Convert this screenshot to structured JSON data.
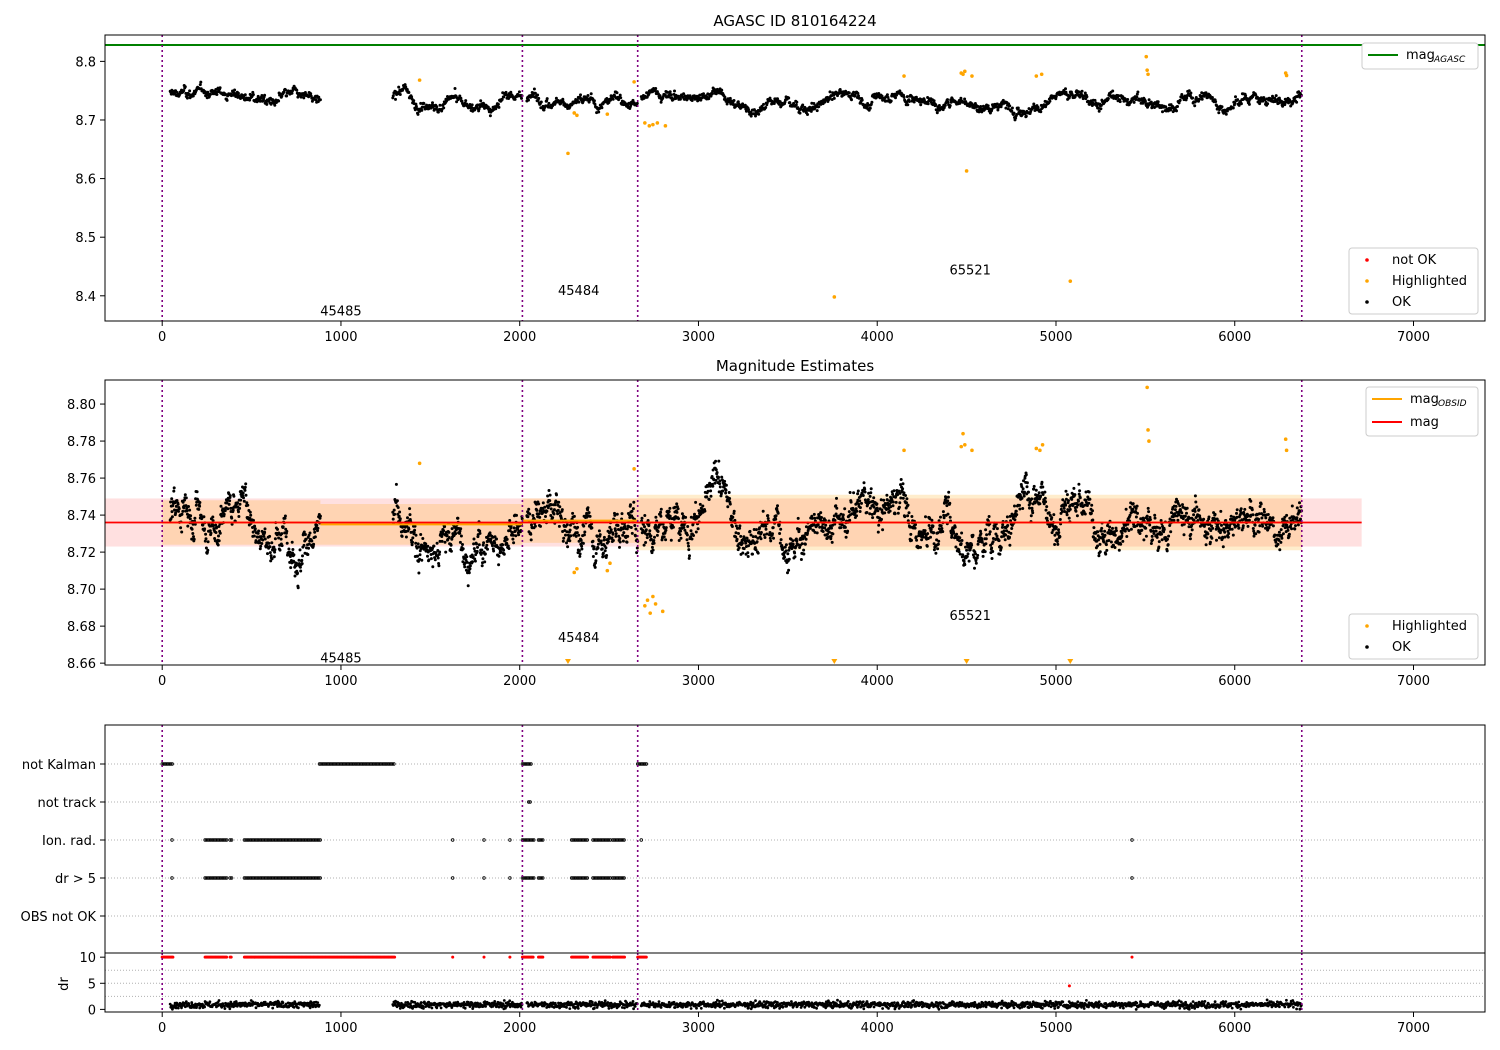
{
  "chart_data": [
    {
      "type": "scatter",
      "title": "AGASC ID 810164224",
      "xlim": [
        -320,
        7400
      ],
      "ylim": [
        8.357,
        8.845
      ],
      "x_ticks": [
        0,
        1000,
        2000,
        3000,
        4000,
        5000,
        6000,
        7000
      ],
      "y_ticks": [
        8.4,
        8.5,
        8.6,
        8.7,
        8.8
      ],
      "reference_line": {
        "name": "mag",
        "subscript": "AGASC",
        "value": 8.828,
        "color": "#008000"
      },
      "obs_boundaries": [
        0,
        2015,
        2660,
        6375
      ],
      "obs_labels": [
        {
          "text": "45485",
          "x": 1000,
          "y": 8.375
        },
        {
          "text": "45484",
          "x": 2330,
          "y": 8.41
        },
        {
          "text": "65521",
          "x": 4520,
          "y": 8.445
        }
      ],
      "segments": [
        {
          "x0": 45,
          "x1": 885,
          "level": 8.738
        },
        {
          "x0": 1290,
          "x1": 2015,
          "level": 8.731
        },
        {
          "x0": 2040,
          "x1": 2660,
          "level": 8.738
        },
        {
          "x0": 2680,
          "x1": 6375,
          "level": 8.736
        }
      ],
      "series": [
        {
          "name": "not OK",
          "color": "#ff0000",
          "points": []
        },
        {
          "name": "Highlighted",
          "color": "#ffa500",
          "points": [
            [
              1440,
              8.768
            ],
            [
              2270,
              8.643
            ],
            [
              2305,
              8.712
            ],
            [
              2320,
              8.708
            ],
            [
              2490,
              8.71
            ],
            [
              2640,
              8.765
            ],
            [
              2700,
              8.695
            ],
            [
              2725,
              8.69
            ],
            [
              2745,
              8.692
            ],
            [
              2770,
              8.695
            ],
            [
              2815,
              8.69
            ],
            [
              3760,
              8.398
            ],
            [
              4150,
              8.775
            ],
            [
              4470,
              8.78
            ],
            [
              4480,
              8.778
            ],
            [
              4490,
              8.783
            ],
            [
              4500,
              8.613
            ],
            [
              4530,
              8.775
            ],
            [
              4890,
              8.775
            ],
            [
              4920,
              8.778
            ],
            [
              5080,
              8.425
            ],
            [
              5505,
              8.808
            ],
            [
              5510,
              8.785
            ],
            [
              5515,
              8.778
            ],
            [
              6285,
              8.78
            ],
            [
              6290,
              8.776
            ]
          ]
        },
        {
          "name": "OK",
          "color": "#000000",
          "points": []
        }
      ],
      "legend": "lower-right",
      "legend_ref": "upper-right"
    },
    {
      "type": "scatter",
      "title": "Magnitude Estimates",
      "xlim": [
        -320,
        7400
      ],
      "ylim": [
        8.659,
        8.813
      ],
      "x_ticks": [
        0,
        1000,
        2000,
        3000,
        4000,
        5000,
        6000,
        7000
      ],
      "y_ticks": [
        8.66,
        8.68,
        8.7,
        8.72,
        8.74,
        8.76,
        8.78,
        8.8
      ],
      "obs_boundaries": [
        0,
        2015,
        2660,
        6375
      ],
      "obs_labels": [
        {
          "text": "45485",
          "x": 1000,
          "y": 8.663
        },
        {
          "text": "45484",
          "x": 2330,
          "y": 8.674
        },
        {
          "text": "65521",
          "x": 4520,
          "y": 8.686
        }
      ],
      "mag_line": {
        "name": "mag",
        "value": 8.736,
        "band": [
          8.723,
          8.749
        ],
        "x0": -320,
        "x1": 6710,
        "color": "#ff0000"
      },
      "obsid_means": [
        {
          "x0": 0,
          "x1": 885,
          "value": 8.736,
          "band": [
            8.724,
            8.748
          ]
        },
        {
          "x0": 885,
          "x1": 2015,
          "value": 8.735,
          "band": [
            8.724,
            8.746
          ]
        },
        {
          "x0": 2015,
          "x1": 2660,
          "value": 8.737,
          "band": [
            8.725,
            8.749
          ]
        },
        {
          "x0": 2660,
          "x1": 6375,
          "value": 8.736,
          "band": [
            8.721,
            8.751
          ]
        }
      ],
      "obsid_name": "mag",
      "obsid_subscript": "OBSID",
      "obsid_color": "#ffa500",
      "segments": [
        {
          "x0": 45,
          "x1": 885,
          "level": 8.737
        },
        {
          "x0": 1290,
          "x1": 2015,
          "level": 8.731
        },
        {
          "x0": 2040,
          "x1": 2660,
          "level": 8.737
        },
        {
          "x0": 2680,
          "x1": 6375,
          "level": 8.736
        }
      ],
      "series": [
        {
          "name": "Highlighted",
          "color": "#ffa500",
          "points": [
            [
              1440,
              8.768
            ],
            [
              2305,
              8.709
            ],
            [
              2320,
              8.711
            ],
            [
              2490,
              8.71
            ],
            [
              2505,
              8.714
            ],
            [
              2640,
              8.765
            ],
            [
              2700,
              8.691
            ],
            [
              2715,
              8.694
            ],
            [
              2730,
              8.687
            ],
            [
              2745,
              8.696
            ],
            [
              2760,
              8.692
            ],
            [
              2800,
              8.688
            ],
            [
              4150,
              8.775
            ],
            [
              4470,
              8.777
            ],
            [
              4480,
              8.784
            ],
            [
              4490,
              8.778
            ],
            [
              4530,
              8.775
            ],
            [
              4890,
              8.776
            ],
            [
              4910,
              8.775
            ],
            [
              4925,
              8.778
            ],
            [
              5510,
              8.809
            ],
            [
              5515,
              8.786
            ],
            [
              5520,
              8.78
            ],
            [
              6285,
              8.781
            ],
            [
              6290,
              8.775
            ]
          ]
        },
        {
          "name": "OK",
          "color": "#000000",
          "points": []
        }
      ],
      "offscale_markers": [
        2270,
        3760,
        4500,
        5080
      ],
      "legend": "lower-right",
      "legend_ref": "upper-right"
    },
    {
      "type": "scatter",
      "xlim": [
        -320,
        7400
      ],
      "flag_rows": [
        "not Kalman",
        "not track",
        "Ion. rad.",
        "dr > 5",
        "OBS not OK"
      ],
      "flags": {
        "not Kalman": [
          [
            0,
            60
          ],
          [
            880,
            1300
          ],
          [
            2015,
            2070
          ],
          [
            2660,
            2710
          ]
        ],
        "not track": [
          [
            2050,
            2060
          ]
        ],
        "Ion. rad.": [
          [
            55,
            60
          ],
          [
            240,
            360
          ],
          [
            380,
            390
          ],
          [
            460,
            890
          ],
          [
            1625,
            1630
          ],
          [
            1800,
            1805
          ],
          [
            1945,
            1950
          ],
          [
            2015,
            2080
          ],
          [
            2105,
            2130
          ],
          [
            2290,
            2380
          ],
          [
            2410,
            2510
          ],
          [
            2520,
            2590
          ],
          [
            2680,
            2685
          ],
          [
            5425,
            5430
          ]
        ],
        "dr > 5": [
          [
            55,
            60
          ],
          [
            240,
            360
          ],
          [
            380,
            390
          ],
          [
            460,
            890
          ],
          [
            1625,
            1630
          ],
          [
            1800,
            1805
          ],
          [
            1945,
            1950
          ],
          [
            2015,
            2080
          ],
          [
            2105,
            2130
          ],
          [
            2290,
            2380
          ],
          [
            2410,
            2510
          ],
          [
            2520,
            2590
          ],
          [
            5425,
            5430
          ]
        ],
        "OBS not OK": []
      },
      "obs_boundaries": [
        0,
        2015,
        2660,
        6375
      ]
    },
    {
      "type": "scatter",
      "ylabel": "dr",
      "xlim": [
        -320,
        7400
      ],
      "ylim": [
        -0.5,
        10.8
      ],
      "x_ticks": [
        0,
        1000,
        2000,
        3000,
        4000,
        5000,
        6000,
        7000
      ],
      "y_ticks": [
        0,
        5,
        10
      ],
      "clip_value": 10,
      "clipped_ranges": [
        [
          0,
          60
        ],
        [
          240,
          360
        ],
        [
          380,
          390
        ],
        [
          460,
          1300
        ],
        [
          1625,
          1630
        ],
        [
          1800,
          1805
        ],
        [
          1945,
          1950
        ],
        [
          2015,
          2080
        ],
        [
          2105,
          2130
        ],
        [
          2290,
          2380
        ],
        [
          2410,
          2510
        ],
        [
          2520,
          2590
        ],
        [
          2660,
          2710
        ],
        [
          5425,
          5430
        ]
      ],
      "extra_points": [
        [
          5075,
          4.5
        ]
      ],
      "dr_ranges": [
        [
          45,
          880
        ],
        [
          1290,
          2015
        ],
        [
          2040,
          2660
        ],
        [
          2680,
          6375
        ]
      ],
      "obs_boundaries": [
        0,
        2015,
        2660,
        6375
      ]
    }
  ]
}
